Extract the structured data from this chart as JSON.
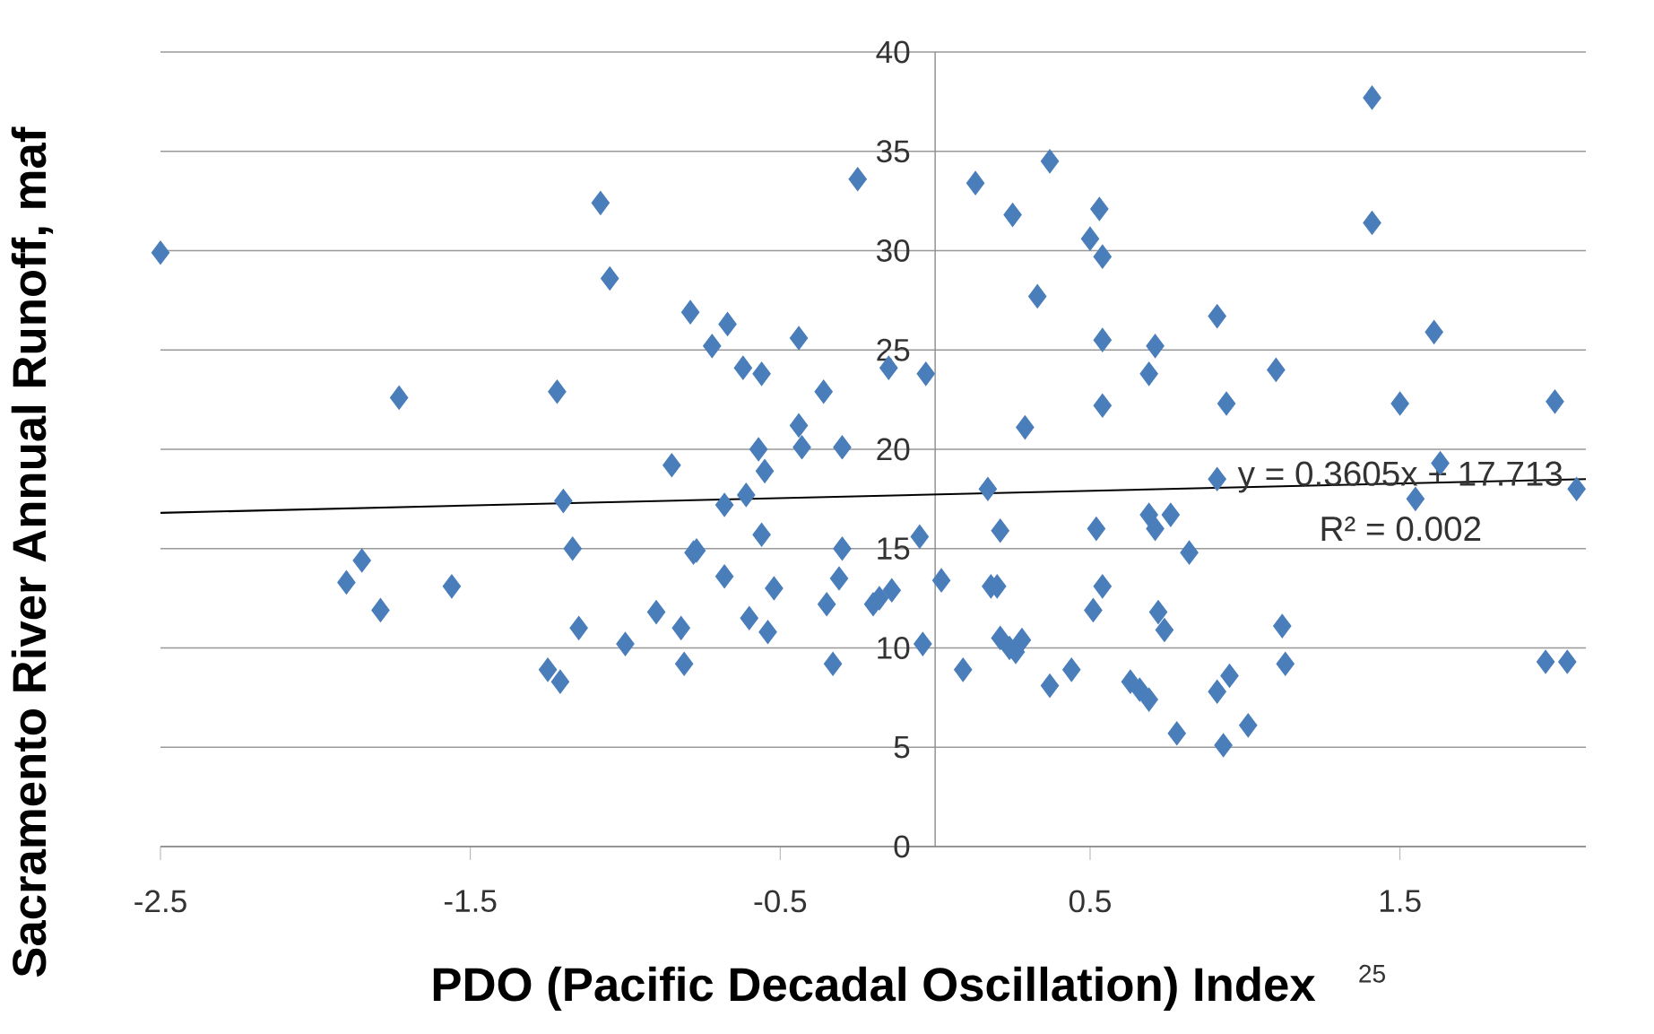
{
  "chart_data": {
    "type": "scatter",
    "xlabel": "PDO (Pacific Decadal Oscillation) Index",
    "ylabel": "Sacramento  River Annual Runoff, maf",
    "xlim": [
      -2.5,
      2.1
    ],
    "ylim": [
      0,
      40
    ],
    "xticks": [
      -2.5,
      -1.5,
      -0.5,
      0.5,
      1.5
    ],
    "yticks": [
      0,
      5,
      10,
      15,
      20,
      25,
      30,
      35,
      40
    ],
    "grid": "y",
    "marker": "diamond",
    "series": [
      {
        "color": "#4a7ebb",
        "x": [
          -2.5,
          -1.9,
          -1.85,
          -1.79,
          -1.73,
          -1.56,
          -1.25,
          -1.21,
          -1.22,
          -1.2,
          -1.17,
          -1.15,
          -1.08,
          -1.05,
          -1.0,
          -0.9,
          -0.85,
          -0.82,
          -0.81,
          -0.79,
          -0.78,
          -0.77,
          -0.72,
          -0.67,
          -0.68,
          -0.68,
          -0.62,
          -0.61,
          -0.6,
          -0.57,
          -0.56,
          -0.55,
          -0.56,
          -0.54,
          -0.52,
          -0.44,
          -0.44,
          -0.43,
          -0.36,
          -0.35,
          -0.33,
          -0.31,
          -0.3,
          -0.3,
          -0.25,
          -0.2,
          -0.18,
          -0.14,
          -0.15,
          -0.05,
          -0.04,
          -0.03,
          0.02,
          0.09,
          0.13,
          0.17,
          0.18,
          0.2,
          0.21,
          0.21,
          0.24,
          0.26,
          0.28,
          0.25,
          0.29,
          0.33,
          0.37,
          0.37,
          0.44,
          0.5,
          0.53,
          0.54,
          0.54,
          0.54,
          0.52,
          0.54,
          0.51,
          0.63,
          0.66,
          0.69,
          0.69,
          0.71,
          0.69,
          0.71,
          0.76,
          0.72,
          0.74,
          0.78,
          0.82,
          0.91,
          0.91,
          0.94,
          0.91,
          0.95,
          0.93,
          1.01,
          1.1,
          1.12,
          1.13,
          1.41,
          1.41,
          1.5,
          1.55,
          1.61,
          1.63,
          1.97,
          2.0,
          2.04,
          2.07
        ],
        "values": [
          29.9,
          13.3,
          14.4,
          11.9,
          22.6,
          13.1,
          8.9,
          8.3,
          22.9,
          17.4,
          15.0,
          11.0,
          32.4,
          28.6,
          10.2,
          11.8,
          19.2,
          11.0,
          9.2,
          26.9,
          14.8,
          14.9,
          25.2,
          26.3,
          17.2,
          13.6,
          24.1,
          17.7,
          11.5,
          20.0,
          23.8,
          18.9,
          15.7,
          10.8,
          13.0,
          25.6,
          21.2,
          20.1,
          22.9,
          12.2,
          9.2,
          13.5,
          15.0,
          20.1,
          33.6,
          12.2,
          12.5,
          12.9,
          24.1,
          15.6,
          10.2,
          23.8,
          13.4,
          8.9,
          33.4,
          18.0,
          13.1,
          13.1,
          15.9,
          10.5,
          10.0,
          9.8,
          10.4,
          31.8,
          21.1,
          27.7,
          34.5,
          8.1,
          8.9,
          30.6,
          32.1,
          29.7,
          25.5,
          22.2,
          16.0,
          13.1,
          11.9,
          8.3,
          7.9,
          7.4,
          23.8,
          25.2,
          16.7,
          16.0,
          16.7,
          11.8,
          10.9,
          5.7,
          14.8,
          26.7,
          18.5,
          22.3,
          7.8,
          8.6,
          5.1,
          6.1,
          24.0,
          11.1,
          9.2,
          37.7,
          31.4,
          22.3,
          17.5,
          25.9,
          19.3,
          9.3,
          22.4,
          9.3,
          18.0
        ]
      },
      {
        "type": "line",
        "color": "#000000",
        "marker": "none",
        "x": [
          -2.5,
          2.1
        ],
        "values": [
          16.8,
          18.5
        ]
      }
    ],
    "annotations": [
      "y = 0.3605x + 17.713",
      "R² = 0.002",
      "25"
    ]
  }
}
